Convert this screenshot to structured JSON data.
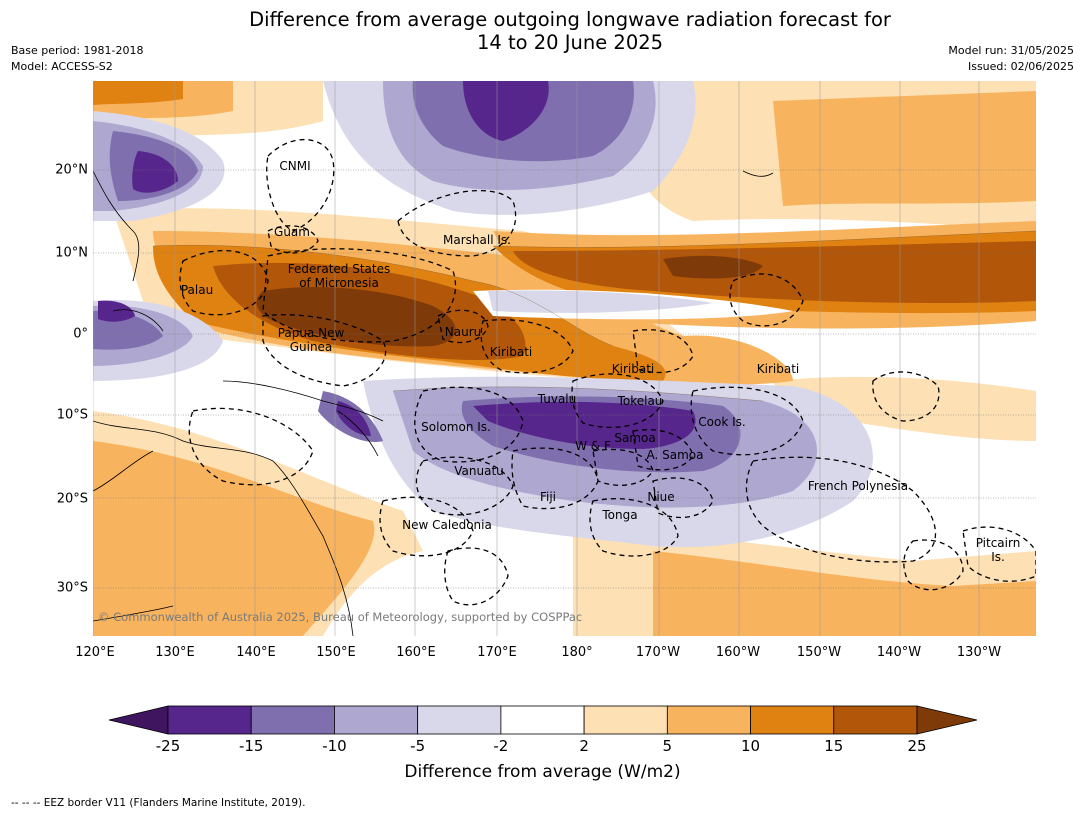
{
  "header": {
    "title_line1": "Difference from average outgoing longwave radiation forecast for",
    "title_line2": "14 to 20 June 2025",
    "base_period": "Base period: 1981-2018",
    "model": "Model: ACCESS-S2",
    "model_run": "Model run: 31/05/2025",
    "issued": "Issued: 02/06/2025"
  },
  "map": {
    "lat_ticks": [
      "20°N",
      "10°N",
      "0°",
      "10°S",
      "20°S",
      "30°S"
    ],
    "lon_ticks": [
      "120°E",
      "130°E",
      "140°E",
      "150°E",
      "160°E",
      "170°E",
      "180°",
      "170°W",
      "160°W",
      "150°W",
      "140°W",
      "130°W"
    ],
    "regions": {
      "cnmi": "CNMI",
      "guam": "Guam",
      "marshall": "Marshall Is.",
      "fsm": "Federated States\nof Micronesia",
      "palau": "Palau",
      "png": "Papua New\nGuinea",
      "nauru": "Nauru",
      "kiribati_w": "Kiribati",
      "kiribati_c": "Kiribati",
      "kiribati_e": "Kiribati",
      "tuvalu": "Tuvalu",
      "tokelau": "Tokelau",
      "cook": "Cook Is.",
      "solomon": "Solomon Is.",
      "wf": "W & F",
      "samoa": "Samoa",
      "asamoa": "A. Samoa",
      "vanuatu": "Vanuatu",
      "fiji": "Fiji",
      "niue": "Niue",
      "tonga": "Tonga",
      "newcal": "New Caledonia",
      "fp": "French Polynesia",
      "pitcairn": "Pitcairn\nIs."
    },
    "copyright": "© Commonwealth of Australia 2025, Bureau of Meteorology, supported by COSPPac"
  },
  "colorbar": {
    "ticks": [
      "-25",
      "-15",
      "-10",
      "-5",
      "-2",
      "2",
      "5",
      "10",
      "15",
      "25"
    ],
    "colors": [
      "#3f1560",
      "#57268c",
      "#7f6fae",
      "#aea7d0",
      "#d9d8ea",
      "#ffffff",
      "#fde0b3",
      "#f8b35e",
      "#e08211",
      "#b25609",
      "#7f3a0a"
    ],
    "label": "Difference from average (W/m2)"
  },
  "footnote": "--  --  -- EEZ border V11 (Flanders Marine Institute, 2019)."
}
